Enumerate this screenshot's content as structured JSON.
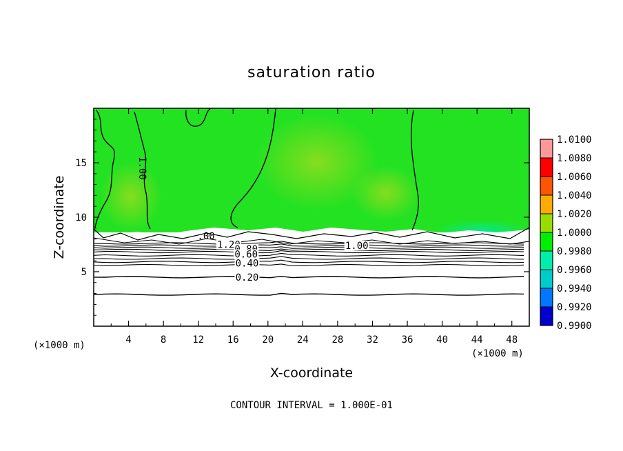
{
  "chart_data": {
    "type": "heatmap",
    "title": "saturation ratio",
    "xlabel": "X-coordinate",
    "ylabel": "Z-coordinate",
    "x_unit": "(×1000 m)",
    "y_unit": "(×1000 m)",
    "xlim": [
      0,
      50
    ],
    "ylim": [
      0,
      20
    ],
    "x_ticks": [
      4,
      8,
      12,
      16,
      20,
      24,
      28,
      32,
      36,
      40,
      44,
      48
    ],
    "y_ticks": [
      5,
      10,
      15
    ],
    "colorbar": {
      "levels": [
        "1.0100",
        "1.0080",
        "1.0060",
        "1.0040",
        "1.0020",
        "1.0000",
        "0.9980",
        "0.9960",
        "0.9940",
        "0.9920",
        "0.9900"
      ],
      "colors": [
        "#ff9999",
        "#ff0000",
        "#ff5500",
        "#ffaa00",
        "#99dd00",
        "#00ee00",
        "#00eeaa",
        "#00cccc",
        "#0077ff",
        "#0000cc",
        "#660099"
      ]
    },
    "contour_labels": [
      {
        "text": "1.00",
        "x": 5.6,
        "z": 14.5,
        "rotate": true
      },
      {
        "text": ".00",
        "x": 12.9,
        "z": 8.3
      },
      {
        "text": "1.20",
        "x": 15.5,
        "z": 7.5
      },
      {
        "text": "0.80",
        "x": 17.5,
        "z": 7.1
      },
      {
        "text": "0.60",
        "x": 17.5,
        "z": 6.6
      },
      {
        "text": "0.40",
        "x": 17.6,
        "z": 5.8
      },
      {
        "text": "0.20",
        "x": 17.6,
        "z": 4.5
      },
      {
        "text": "1.00",
        "x": 30.2,
        "z": 7.4
      }
    ],
    "contour_levels_z": [
      7.6,
      7.4,
      7.2,
      7.0,
      6.8,
      6.5,
      6.2,
      5.9,
      5.6,
      4.5,
      2.9
    ],
    "footnote": "CONTOUR INTERVAL = 1.000E-01"
  }
}
